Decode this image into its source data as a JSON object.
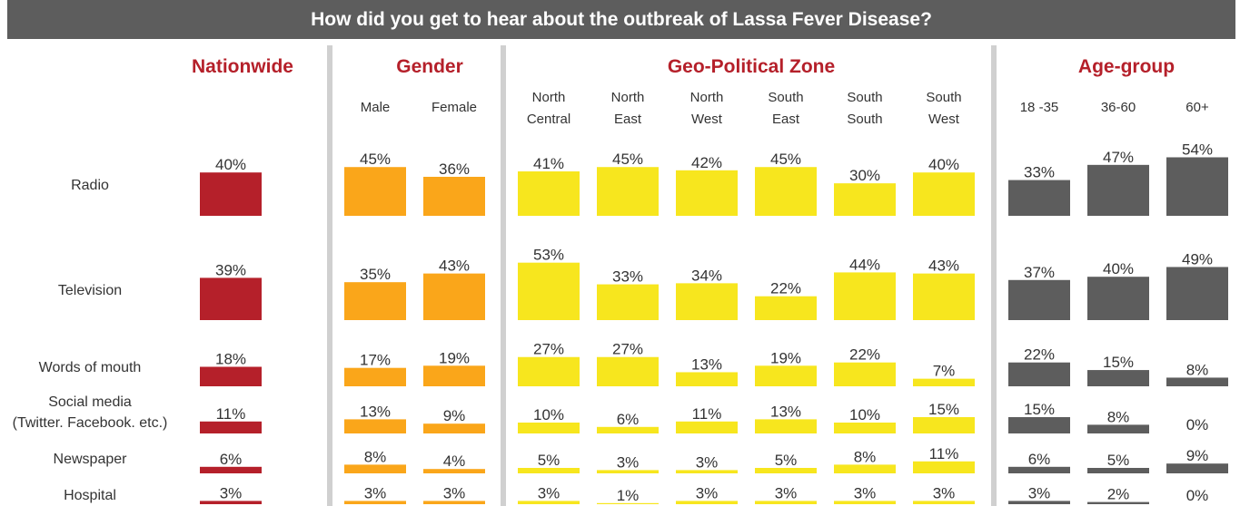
{
  "chart_data": {
    "type": "bar",
    "title": "How did you get to hear about the outbreak of Lassa Fever Disease?",
    "categories": [
      "Radio",
      "Television",
      "Words of mouth",
      "Social media\n(Twitter. Facebook. etc.)",
      "Newspaper",
      "Hospital"
    ],
    "groups": [
      {
        "title": "Nationwide",
        "color": "#b5202a",
        "title_color": "#b5202a",
        "series": [
          {
            "name": "",
            "values": [
              40,
              39,
              18,
              11,
              6,
              3
            ]
          }
        ]
      },
      {
        "title": "Gender",
        "color": "#faa61a",
        "title_color": "#b5202a",
        "series": [
          {
            "name": "Male",
            "values": [
              45,
              35,
              17,
              13,
              8,
              3
            ]
          },
          {
            "name": "Female",
            "values": [
              36,
              43,
              19,
              9,
              4,
              3
            ]
          }
        ]
      },
      {
        "title": "Geo-Political Zone",
        "color": "#f7e61e",
        "title_color": "#b5202a",
        "series": [
          {
            "name": "North\nCentral",
            "values": [
              41,
              53,
              27,
              10,
              5,
              3
            ]
          },
          {
            "name": "North\nEast",
            "values": [
              45,
              33,
              27,
              6,
              3,
              1
            ]
          },
          {
            "name": "North\nWest",
            "values": [
              42,
              34,
              13,
              11,
              3,
              3
            ]
          },
          {
            "name": "South\nEast",
            "values": [
              45,
              22,
              19,
              13,
              5,
              3
            ]
          },
          {
            "name": "South\nSouth",
            "values": [
              30,
              44,
              22,
              10,
              8,
              3
            ]
          },
          {
            "name": "South\nWest",
            "values": [
              40,
              43,
              7,
              15,
              11,
              3
            ]
          }
        ]
      },
      {
        "title": "Age-group",
        "color": "#5d5d5d",
        "title_color": "#b5202a",
        "series": [
          {
            "name": "18 -35",
            "values": [
              33,
              37,
              22,
              15,
              6,
              3
            ]
          },
          {
            "name": "36-60",
            "values": [
              47,
              40,
              15,
              8,
              5,
              2
            ]
          },
          {
            "name": "60+",
            "values": [
              54,
              49,
              8,
              0,
              9,
              0
            ]
          }
        ]
      }
    ],
    "value_suffix": "%",
    "grid": false,
    "legend": "none"
  }
}
